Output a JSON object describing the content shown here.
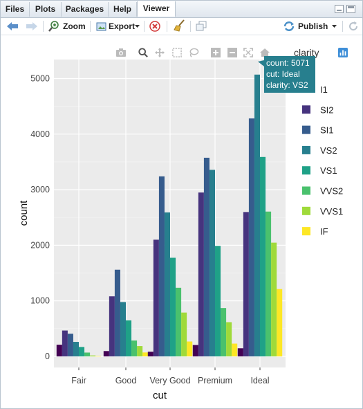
{
  "tabs": [
    {
      "label": "Files"
    },
    {
      "label": "Plots"
    },
    {
      "label": "Packages"
    },
    {
      "label": "Help"
    },
    {
      "label": "Viewer"
    }
  ],
  "toolbar": {
    "zoom_label": "Zoom",
    "export_label": "Export",
    "publish_label": "Publish"
  },
  "tooltip": {
    "line1": "count: 5071",
    "line2": "cut: Ideal",
    "line3": "clarity: VS2"
  },
  "legend": {
    "title": "clarity"
  },
  "chart_data": {
    "type": "bar",
    "xlabel": "cut",
    "ylabel": "count",
    "categories": [
      "Fair",
      "Good",
      "Very Good",
      "Premium",
      "Ideal"
    ],
    "ylim": [
      0,
      5300
    ],
    "yticks": [
      0,
      1000,
      2000,
      3000,
      4000,
      5000
    ],
    "grid": true,
    "legend_position": "right",
    "series": [
      {
        "name": "I1",
        "color": "#440154",
        "values": [
          210,
          96,
          84,
          205,
          146
        ]
      },
      {
        "name": "SI2",
        "color": "#46337E",
        "values": [
          466,
          1081,
          2100,
          2949,
          2598
        ]
      },
      {
        "name": "SI1",
        "color": "#365C8D",
        "values": [
          408,
          1560,
          3240,
          3575,
          4282
        ]
      },
      {
        "name": "VS2",
        "color": "#277F8E",
        "values": [
          261,
          978,
          2591,
          3357,
          5071
        ]
      },
      {
        "name": "VS1",
        "color": "#1FA187",
        "values": [
          170,
          648,
          1775,
          1989,
          3589
        ]
      },
      {
        "name": "VVS2",
        "color": "#4AC16D",
        "values": [
          69,
          286,
          1235,
          870,
          2606
        ]
      },
      {
        "name": "VVS1",
        "color": "#9FDA3A",
        "values": [
          17,
          186,
          789,
          616,
          2047
        ]
      },
      {
        "name": "IF",
        "color": "#FDE725",
        "values": [
          9,
          71,
          268,
          230,
          1212
        ]
      }
    ]
  }
}
